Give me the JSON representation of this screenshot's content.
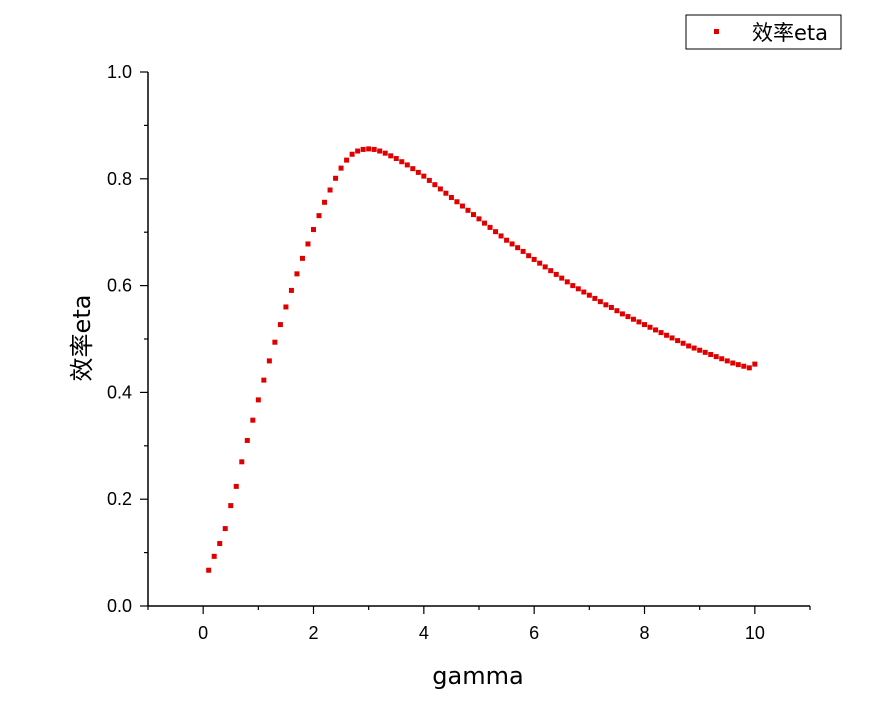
{
  "chart_data": {
    "type": "scatter",
    "title": "",
    "xlabel": "gamma",
    "ylabel": "效率eta",
    "xlim": [
      -1,
      11
    ],
    "ylim": [
      0,
      1
    ],
    "xticks": [
      0,
      2,
      4,
      6,
      8,
      10
    ],
    "yticks": [
      0.0,
      0.2,
      0.4,
      0.6,
      0.8,
      1.0
    ],
    "xtick_labels": [
      "0",
      "2",
      "4",
      "6",
      "8",
      "10"
    ],
    "ytick_labels": [
      "0.0",
      "0.2",
      "0.4",
      "0.6",
      "0.8",
      "1.0"
    ],
    "grid": false,
    "legend": {
      "position": "top-right",
      "entries": [
        "效率eta"
      ]
    },
    "series": [
      {
        "name": "效率eta",
        "color": "#e00000",
        "marker": "square",
        "x": [
          0.1,
          0.2,
          0.3,
          0.4,
          0.5,
          0.6,
          0.7,
          0.8,
          0.9,
          1.0,
          1.1,
          1.2,
          1.3,
          1.4,
          1.5,
          1.6,
          1.7,
          1.8,
          1.9,
          2.0,
          2.1,
          2.2,
          2.3,
          2.4,
          2.5,
          2.6,
          2.7,
          2.8,
          2.9,
          3.0,
          3.1,
          3.2,
          3.3,
          3.4,
          3.5,
          3.6,
          3.7,
          3.8,
          3.9,
          4.0,
          4.1,
          4.2,
          4.3,
          4.4,
          4.5,
          4.6,
          4.7,
          4.8,
          4.9,
          5.0,
          5.1,
          5.2,
          5.3,
          5.4,
          5.5,
          5.6,
          5.7,
          5.8,
          5.9,
          6.0,
          6.1,
          6.2,
          6.3,
          6.4,
          6.5,
          6.6,
          6.7,
          6.8,
          6.9,
          7.0,
          7.1,
          7.2,
          7.3,
          7.4,
          7.5,
          7.6,
          7.7,
          7.8,
          7.9,
          8.0,
          8.1,
          8.2,
          8.3,
          8.4,
          8.5,
          8.6,
          8.7,
          8.8,
          8.9,
          9.0,
          9.1,
          9.2,
          9.3,
          9.4,
          9.5,
          9.6,
          9.7,
          9.8,
          9.9,
          10.0
        ],
        "y": [
          0.067,
          0.093,
          0.117,
          0.145,
          0.188,
          0.224,
          0.27,
          0.31,
          0.348,
          0.386,
          0.423,
          0.459,
          0.494,
          0.527,
          0.56,
          0.591,
          0.622,
          0.651,
          0.678,
          0.705,
          0.731,
          0.756,
          0.779,
          0.801,
          0.82,
          0.835,
          0.846,
          0.852,
          0.855,
          0.856,
          0.855,
          0.852,
          0.848,
          0.843,
          0.838,
          0.832,
          0.826,
          0.819,
          0.812,
          0.805,
          0.797,
          0.789,
          0.781,
          0.773,
          0.765,
          0.757,
          0.749,
          0.741,
          0.733,
          0.725,
          0.717,
          0.709,
          0.701,
          0.693,
          0.685,
          0.678,
          0.671,
          0.664,
          0.656,
          0.649,
          0.642,
          0.635,
          0.628,
          0.621,
          0.614,
          0.607,
          0.6,
          0.594,
          0.588,
          0.582,
          0.576,
          0.57,
          0.564,
          0.559,
          0.553,
          0.547,
          0.542,
          0.537,
          0.532,
          0.527,
          0.522,
          0.517,
          0.512,
          0.507,
          0.502,
          0.497,
          0.492,
          0.487,
          0.483,
          0.479,
          0.475,
          0.471,
          0.467,
          0.463,
          0.459,
          0.455,
          0.452,
          0.449,
          0.446,
          0.453
        ]
      }
    ]
  }
}
